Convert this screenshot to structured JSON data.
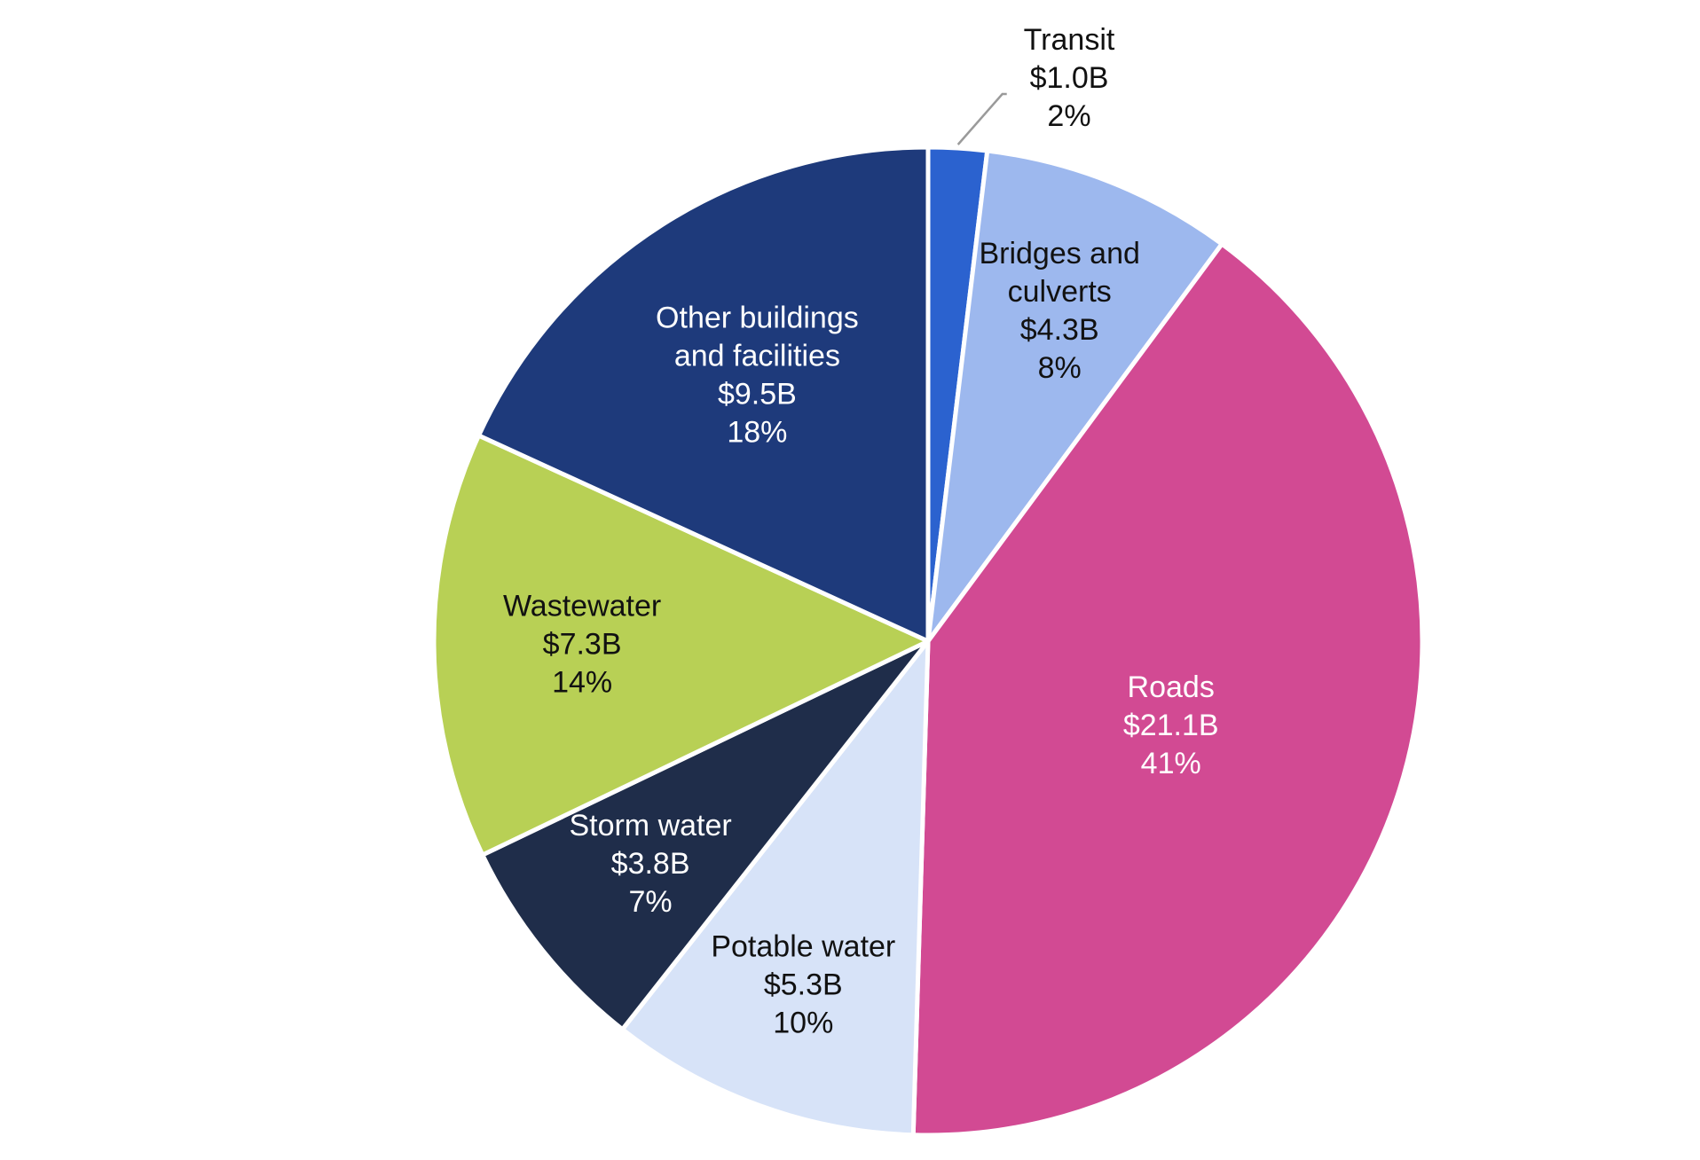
{
  "chart_data": {
    "type": "pie",
    "title": "",
    "slices": [
      {
        "name": "Transit",
        "amount": "$1.0B",
        "value": 1.0,
        "percent": "2%",
        "color": "#2b62cf",
        "label_color": "#111111"
      },
      {
        "name": "Bridges and culverts",
        "name_lines": [
          "Bridges and",
          "culverts"
        ],
        "amount": "$4.3B",
        "value": 4.3,
        "percent": "8%",
        "color": "#9db8ee",
        "label_color": "#111111"
      },
      {
        "name": "Roads",
        "amount": "$21.1B",
        "value": 21.1,
        "percent": "41%",
        "color": "#d24a93",
        "label_color": "#ffffff"
      },
      {
        "name": "Potable water",
        "amount": "$5.3B",
        "value": 5.3,
        "percent": "10%",
        "color": "#d7e3f8",
        "label_color": "#111111"
      },
      {
        "name": "Storm water",
        "amount": "$3.8B",
        "value": 3.8,
        "percent": "7%",
        "color": "#1f2d4a",
        "label_color": "#ffffff"
      },
      {
        "name": "Wastewater",
        "amount": "$7.3B",
        "value": 7.3,
        "percent": "14%",
        "color": "#b8d055",
        "label_color": "#111111"
      },
      {
        "name": "Other buildings and facilities",
        "name_lines": [
          "Other buildings",
          "and facilities"
        ],
        "amount": "$9.5B",
        "value": 9.5,
        "percent": "18%",
        "color": "#1e3a7b",
        "label_color": "#ffffff"
      }
    ]
  }
}
